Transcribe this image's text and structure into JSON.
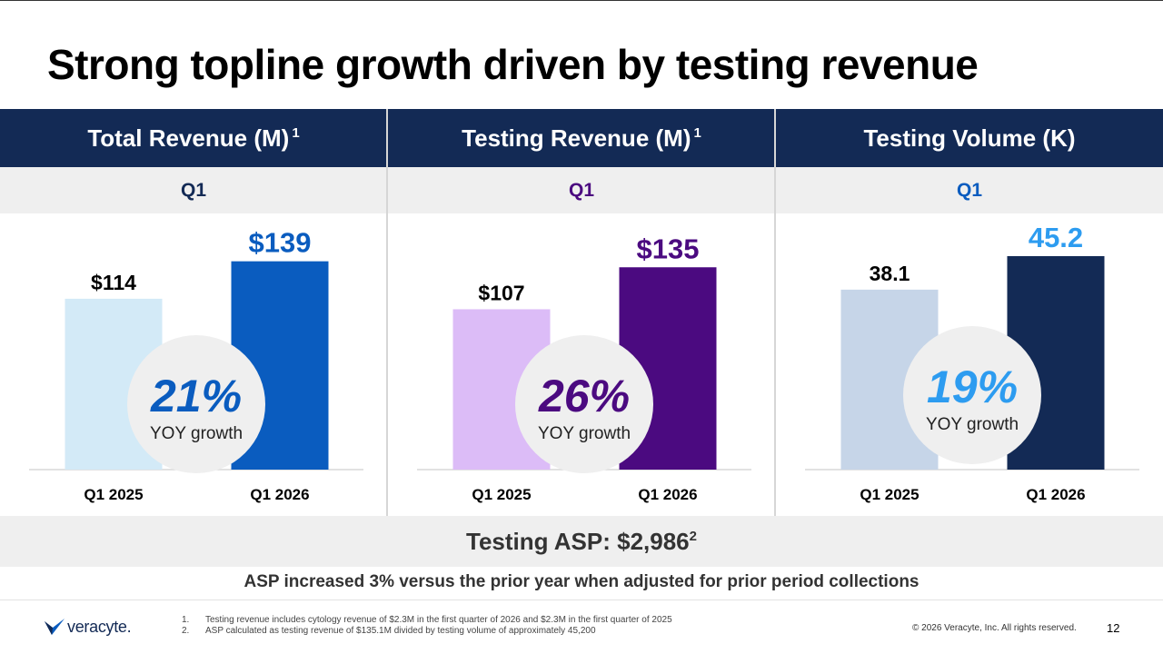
{
  "title": "Strong topline growth driven by testing revenue",
  "panels": [
    {
      "heading": "Total Revenue (M)",
      "heading_sup": "1",
      "period": "Q1",
      "growth": {
        "value": "21%",
        "label": "YOY growth"
      },
      "growth_color": "#0a5cbf",
      "chart_data": {
        "type": "bar",
        "categories": [
          "Q1 2025",
          "Q1 2026"
        ],
        "values": [
          114,
          139
        ],
        "data_labels": [
          "$114",
          "$139"
        ],
        "colors": [
          "#d3eaf7",
          "#0a5cbf"
        ],
        "label_colors": [
          "#000000",
          "#0a5cbf"
        ]
      }
    },
    {
      "heading": "Testing Revenue (M)",
      "heading_sup": "1",
      "period": "Q1",
      "growth": {
        "value": "26%",
        "label": "YOY growth"
      },
      "growth_color": "#4b0a80",
      "chart_data": {
        "type": "bar",
        "categories": [
          "Q1 2025",
          "Q1 2026"
        ],
        "values": [
          107,
          135
        ],
        "data_labels": [
          "$107",
          "$135"
        ],
        "colors": [
          "#dcbcf7",
          "#4b0a80"
        ],
        "label_colors": [
          "#000000",
          "#4b0a80"
        ]
      }
    },
    {
      "heading": "Testing Volume (K)",
      "heading_sup": "",
      "period": "Q1",
      "growth": {
        "value": "19%",
        "label": "YOY growth"
      },
      "growth_color": "#2d9cf0",
      "chart_data": {
        "type": "bar",
        "categories": [
          "Q1 2025",
          "Q1 2026"
        ],
        "values": [
          38.1,
          45.2
        ],
        "data_labels": [
          "38.1",
          "45.2"
        ],
        "colors": [
          "#c6d5e8",
          "#132a55"
        ],
        "label_colors": [
          "#000000",
          "#2d9cf0"
        ]
      }
    }
  ],
  "asp": {
    "text": "Testing ASP: $2,986",
    "sup": "2"
  },
  "asp_note": "ASP increased 3% versus the prior year when adjusted for prior period collections",
  "footer": {
    "logo_text": "veracyte.",
    "footnotes": [
      {
        "num": "1.",
        "text": "Testing revenue includes cytology revenue of $2.3M in the first quarter of 2026 and $2.3M in the first quarter of 2025"
      },
      {
        "num": "2.",
        "text": "ASP calculated as testing revenue of $135.1M divided by testing volume of approximately 45,200"
      }
    ],
    "copyright": "© 2026 Veracyte, Inc. All rights reserved.",
    "page_number": "12"
  },
  "colors": {
    "header_navy": "#132a55",
    "band_gray": "#efefef"
  }
}
